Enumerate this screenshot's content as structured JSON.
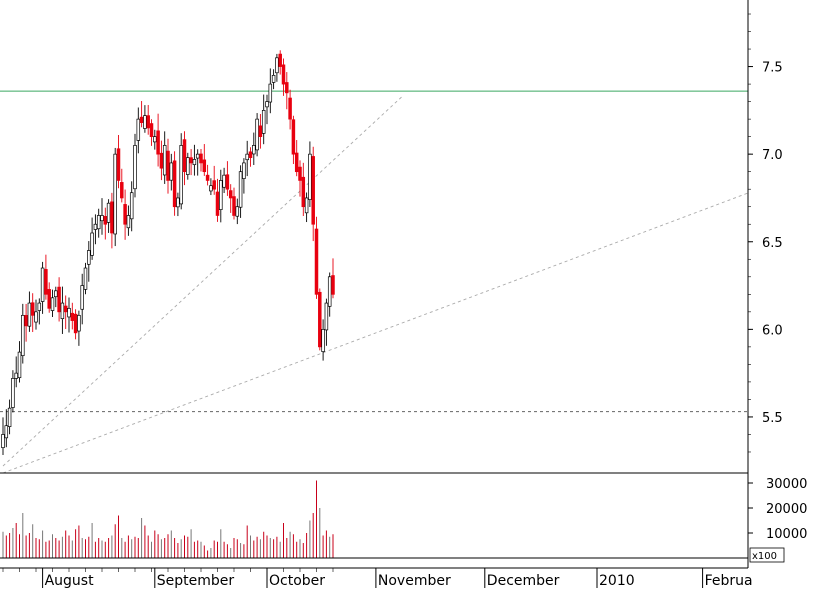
{
  "chart_data": [
    {
      "type": "candlestick",
      "title": "",
      "xlabel": "",
      "ylabel": "",
      "ylim": [
        5.18,
        7.88
      ],
      "y_ticks": [
        "7.5",
        "7.0",
        "6.5",
        "6.0",
        "5.5"
      ],
      "x_month_labels": [
        {
          "label": "August",
          "index": 12
        },
        {
          "label": "September",
          "index": 46
        },
        {
          "label": "October",
          "index": 80
        },
        {
          "label": "November",
          "index": 113
        },
        {
          "label": "December",
          "index": 146
        },
        {
          "label": "2010",
          "index": 180
        },
        {
          "label": "Februa",
          "index": 212
        }
      ],
      "horizontal_lines": [
        {
          "value": 7.36,
          "style": "solid",
          "color": "#3aa860"
        },
        {
          "value": 5.53,
          "style": "dashed",
          "color": "#666666"
        }
      ],
      "trend_lines": [
        {
          "from": [
            0,
            5.22
          ],
          "to": [
            121,
            7.33
          ]
        },
        {
          "from": [
            0,
            5.18
          ],
          "to": [
            226,
            6.78
          ]
        }
      ],
      "colors": {
        "up": "#ffffff",
        "down": "#e8000f",
        "outline": "#000000"
      },
      "closes": [
        5.4,
        5.45,
        5.55,
        5.72,
        5.75,
        5.87,
        6.08,
        6.02,
        6.15,
        6.08,
        6.1,
        6.15,
        6.35,
        6.2,
        6.12,
        6.18,
        6.22,
        6.1,
        6.15,
        6.1,
        6.12,
        6.05,
        5.98,
        6.08,
        6.25,
        6.35,
        6.45,
        6.55,
        6.6,
        6.65,
        6.65,
        6.6,
        6.72,
        6.55,
        7.0,
        6.85,
        6.75,
        6.6,
        6.65,
        6.78,
        7.05,
        7.2,
        7.18,
        7.22,
        7.15,
        7.1,
        7.1,
        7.0,
        6.92,
        7.05,
        6.85,
        6.95,
        6.7,
        6.75,
        7.05,
        6.9,
        6.98,
        6.95,
        6.97,
        7.0,
        6.95,
        6.9,
        6.85,
        6.82,
        6.8,
        6.65,
        6.85,
        6.88,
        6.8,
        6.75,
        6.65,
        6.7,
        6.9,
        6.95,
        7.0,
        6.98,
        7.05,
        7.2,
        7.1,
        7.25,
        7.3,
        7.4,
        7.45,
        7.55,
        7.5,
        7.4,
        7.35,
        7.2,
        7.0,
        6.9,
        6.85,
        6.7,
        6.75,
        7.0,
        6.6,
        6.2,
        5.9,
        6.0,
        6.15,
        6.3,
        6.2
      ],
      "volume_scale_label": "x100",
      "volume_ticks": [
        "30000",
        "20000",
        "10000"
      ],
      "volume_ylim": [
        0,
        32000
      ],
      "volumes": [
        10500,
        9000,
        10000,
        12000,
        14000,
        9500,
        18000,
        9000,
        10000,
        13500,
        8000,
        7500,
        11000,
        6500,
        7000,
        9500,
        8000,
        7000,
        8500,
        11000,
        9000,
        7000,
        11500,
        13000,
        8000,
        7500,
        8500,
        14000,
        6500,
        8000,
        7000,
        6500,
        8000,
        9000,
        13500,
        17000,
        8000,
        6500,
        9000,
        7500,
        8500,
        8000,
        16000,
        13000,
        9000,
        6500,
        11000,
        9500,
        7500,
        8000,
        9500,
        11000,
        8000,
        6000,
        7500,
        9000,
        8500,
        11500,
        6500,
        7000,
        6500,
        5000,
        3000,
        4000,
        7000,
        6500,
        11500,
        6500,
        5500,
        4000,
        8000,
        7500,
        6000,
        5500,
        13000,
        9000,
        7000,
        8500,
        7500,
        10500,
        9000,
        8000,
        7500,
        8500,
        6500,
        14000,
        8000,
        10500,
        9500,
        6500,
        7500,
        6000,
        10000,
        15000,
        18000,
        31000,
        20000,
        9000,
        11000,
        8500,
        9500
      ]
    }
  ]
}
